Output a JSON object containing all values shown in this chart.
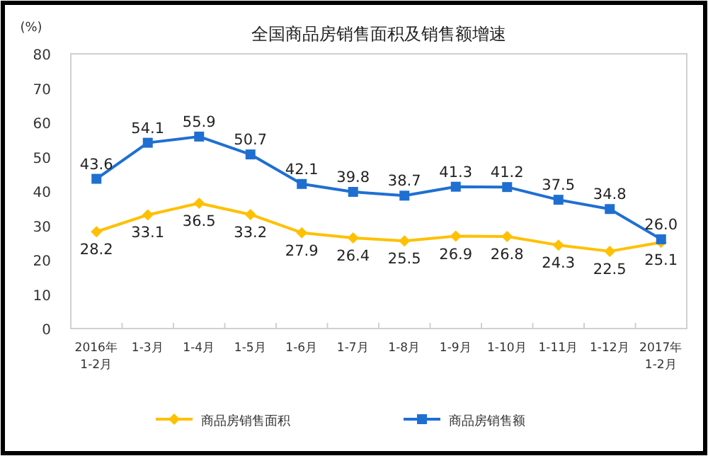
{
  "chart_data": {
    "type": "line",
    "title": "全国商品房销售面积及销售额增速",
    "ylabel": "(%)",
    "categories": [
      "2016年 1-2月",
      "1-3月",
      "1-4月",
      "1-5月",
      "1-6月",
      "1-7月",
      "1-8月",
      "1-9月",
      "1-10月",
      "1-11月",
      "1-12月",
      "2017年 1-2月"
    ],
    "series": [
      {
        "name": "商品房销售面积",
        "color": "#ffc000",
        "marker": "diamond",
        "values": [
          28.2,
          33.1,
          36.5,
          33.2,
          27.9,
          26.4,
          25.5,
          26.9,
          26.8,
          24.3,
          22.5,
          25.1
        ]
      },
      {
        "name": "商品房销售额",
        "color": "#1f6fd1",
        "marker": "square",
        "values": [
          43.6,
          54.1,
          55.9,
          50.7,
          42.1,
          39.8,
          38.7,
          41.3,
          41.2,
          37.5,
          34.8,
          26.0
        ],
        "value_labels": [
          "43.6",
          "54.1",
          "55.9",
          "50.7",
          "42.1",
          "39.8",
          "38.7",
          "41.3",
          "41.2",
          "37.5",
          "34.8",
          "26.0"
        ]
      }
    ],
    "ylim": [
      0,
      80
    ],
    "yticks": [
      0,
      10,
      20,
      30,
      40,
      50,
      60,
      70,
      80
    ],
    "data_labels": true,
    "legend": "bottom",
    "grid": false
  }
}
